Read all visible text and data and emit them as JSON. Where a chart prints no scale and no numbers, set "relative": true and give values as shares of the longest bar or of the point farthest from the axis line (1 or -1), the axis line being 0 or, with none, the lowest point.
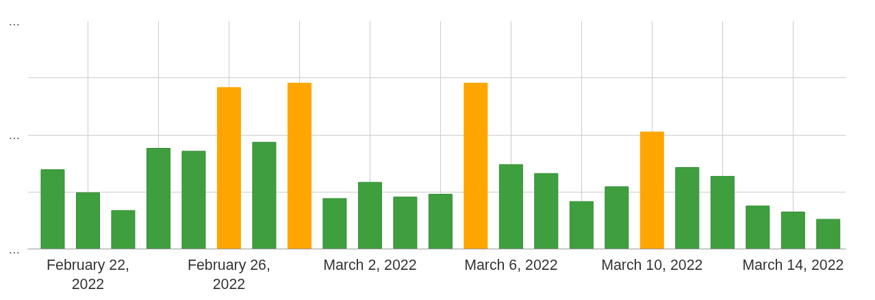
{
  "chart_data": {
    "type": "bar",
    "relative": true,
    "x": [
      "2022-02-21",
      "2022-02-22",
      "2022-02-23",
      "2022-02-24",
      "2022-02-25",
      "2022-02-26",
      "2022-02-27",
      "2022-02-28",
      "2022-03-01",
      "2022-03-02",
      "2022-03-03",
      "2022-03-04",
      "2022-03-05",
      "2022-03-06",
      "2022-03-07",
      "2022-03-08",
      "2022-03-09",
      "2022-03-10",
      "2022-03-11",
      "2022-03-12",
      "2022-03-13",
      "2022-03-14",
      "2022-03-15"
    ],
    "values": [
      0.478,
      0.339,
      0.232,
      0.607,
      0.589,
      0.973,
      0.643,
      1,
      0.304,
      0.402,
      0.313,
      0.33,
      1,
      0.509,
      0.455,
      0.286,
      0.375,
      0.705,
      0.491,
      0.438,
      0.259,
      0.223,
      0.179
    ],
    "colors": [
      "#3f9f3f",
      "#3f9f3f",
      "#3f9f3f",
      "#3f9f3f",
      "#3f9f3f",
      "#ffa500",
      "#3f9f3f",
      "#ffa500",
      "#3f9f3f",
      "#3f9f3f",
      "#3f9f3f",
      "#3f9f3f",
      "#ffa500",
      "#3f9f3f",
      "#3f9f3f",
      "#3f9f3f",
      "#3f9f3f",
      "#ffa500",
      "#3f9f3f",
      "#3f9f3f",
      "#3f9f3f",
      "#3f9f3f",
      "#3f9f3f"
    ],
    "xlim": [
      "2022-02-20T07:00",
      "2022-03-15T12:00"
    ],
    "xticks": [
      {
        "value": "2022-02-22",
        "label": "February 22, 2022"
      },
      {
        "value": "2022-02-24",
        "label": null
      },
      {
        "value": "2022-02-26",
        "label": "February 26, 2022"
      },
      {
        "value": "2022-02-28",
        "label": null
      },
      {
        "value": "2022-03-02",
        "label": "March 2, 2022"
      },
      {
        "value": "2022-03-04",
        "label": null
      },
      {
        "value": "2022-03-06",
        "label": "March 6, 2022"
      },
      {
        "value": "2022-03-08",
        "label": null
      },
      {
        "value": "2022-03-10",
        "label": "March 10, 2022"
      },
      {
        "value": "2022-03-12",
        "label": null
      },
      {
        "value": "2022-03-14",
        "label": "March 14, 2022"
      }
    ],
    "annotations": [
      "…",
      "…",
      "…"
    ],
    "grid": true
  }
}
